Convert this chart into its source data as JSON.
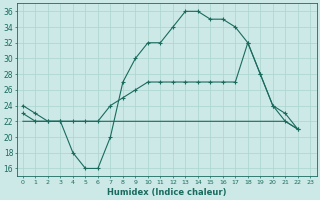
{
  "x": [
    0,
    1,
    2,
    3,
    4,
    5,
    6,
    7,
    8,
    9,
    10,
    11,
    12,
    13,
    14,
    15,
    16,
    17,
    18,
    19,
    20,
    21,
    22,
    23
  ],
  "line_top": [
    24,
    23,
    22,
    22,
    18,
    16,
    16,
    20,
    27,
    30,
    32,
    32,
    34,
    36,
    36,
    35,
    35,
    34,
    32,
    28,
    24,
    23,
    21,
    null
  ],
  "line_mid": [
    23,
    22,
    22,
    22,
    22,
    22,
    22,
    24,
    25,
    26,
    27,
    27,
    27,
    27,
    27,
    27,
    27,
    27,
    32,
    28,
    24,
    22,
    21,
    null
  ],
  "line_flat": [
    22,
    22,
    22,
    22,
    22,
    22,
    22,
    22,
    22,
    22,
    22,
    22,
    22,
    22,
    22,
    22,
    22,
    22,
    22,
    22,
    22,
    22,
    21,
    null
  ],
  "line_color": "#1a6b5e",
  "bg_color": "#cce9e7",
  "grid_color": "#aad4d0",
  "xlabel": "Humidex (Indice chaleur)",
  "ylim": [
    15,
    37
  ],
  "xlim": [
    -0.5,
    23.5
  ],
  "yticks": [
    16,
    18,
    20,
    22,
    24,
    26,
    28,
    30,
    32,
    34,
    36
  ],
  "xticks": [
    0,
    1,
    2,
    3,
    4,
    5,
    6,
    7,
    8,
    9,
    10,
    11,
    12,
    13,
    14,
    15,
    16,
    17,
    18,
    19,
    20,
    21,
    22,
    23
  ]
}
